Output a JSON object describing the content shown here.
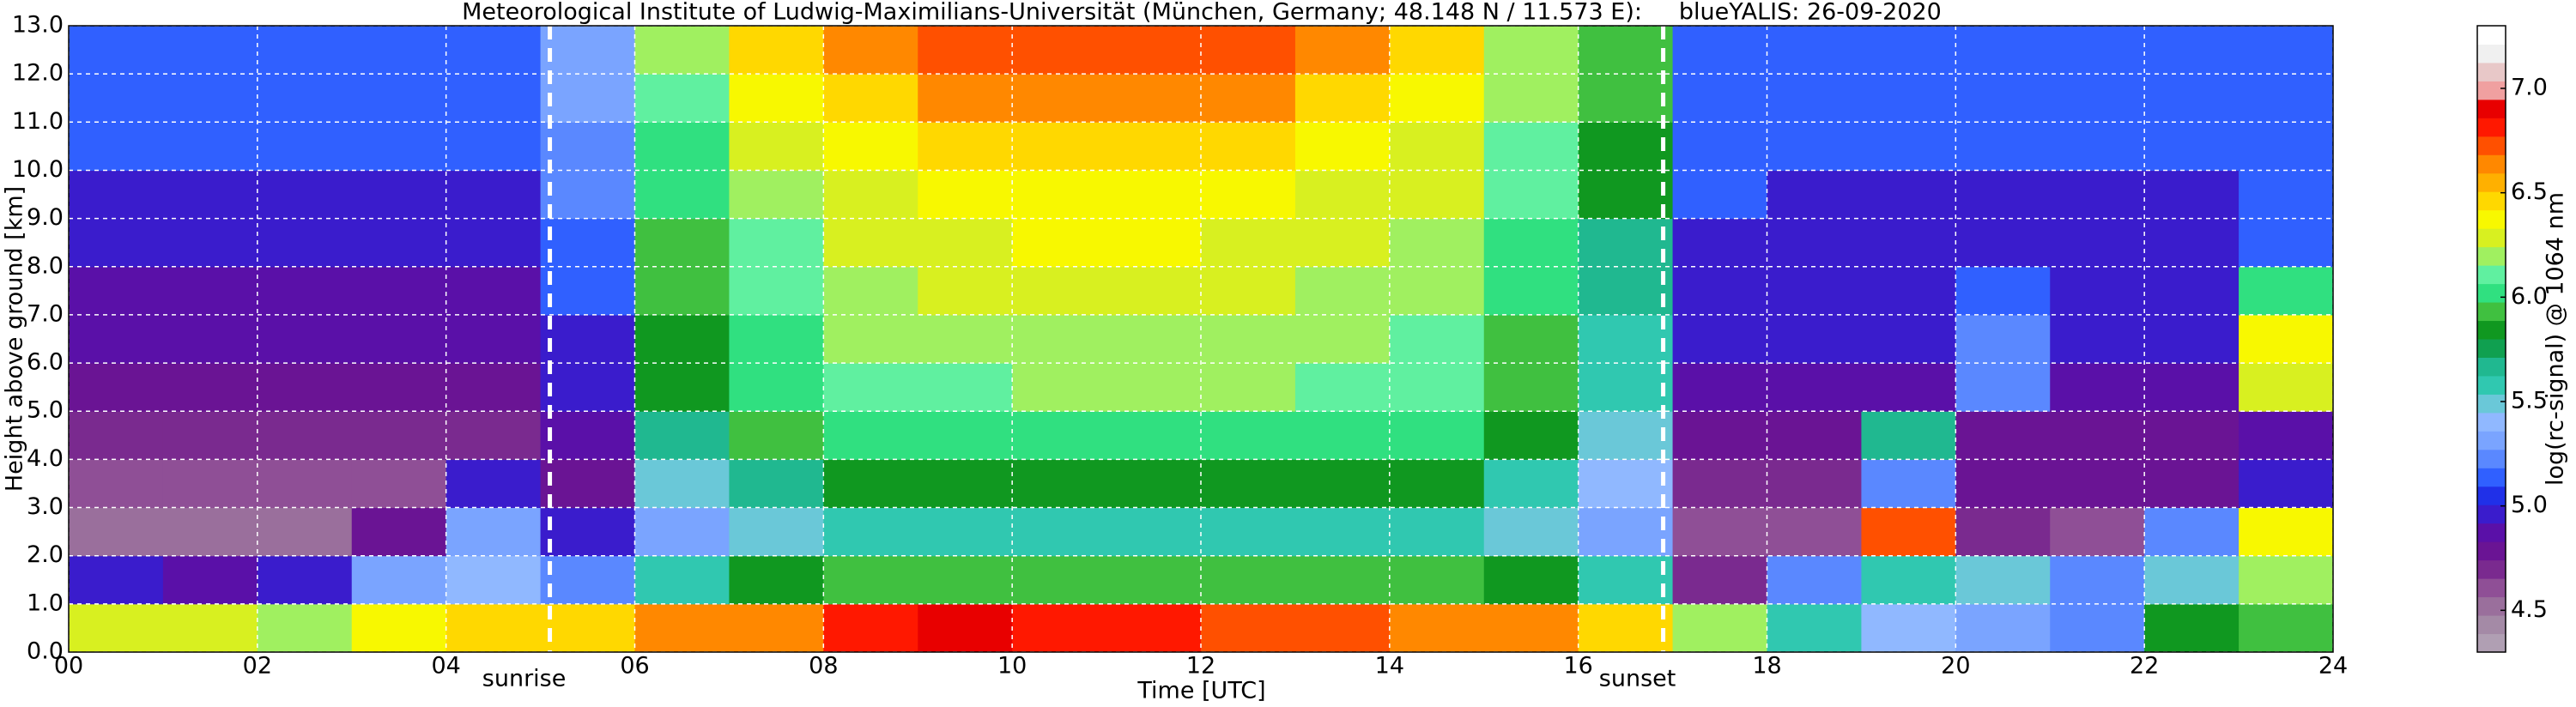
{
  "chart_data": {
    "type": "heatmap",
    "title": "Meteorological Institute of Ludwig-Maximilians-Universität (München, Germany; 48.148 N / 11.573 E):     blueYALIS: 26-09-2020",
    "xlabel": "Time [UTC]",
    "ylabel": "Height above ground [km]",
    "colorbar_label": "log(rc-signal) @ 1064 nm",
    "x": [
      0.5,
      1.5,
      2.5,
      3.5,
      4.5,
      5.5,
      6.5,
      7.5,
      8.5,
      9.5,
      10.5,
      11.5,
      12.5,
      13.5,
      14.5,
      15.5,
      16.5,
      17.5,
      18.5,
      19.5,
      20.5,
      21.5,
      22.5,
      23.5
    ],
    "y": [
      0.5,
      1.5,
      2.5,
      3.5,
      4.5,
      5.5,
      6.5,
      7.5,
      8.5,
      9.5,
      10.5,
      11.5,
      12.5
    ],
    "z": [
      [
        6.3,
        6.3,
        6.2,
        6.4,
        6.5,
        6.5,
        6.6,
        6.6,
        6.8,
        6.9,
        6.8,
        6.8,
        6.7,
        6.7,
        6.6,
        6.6,
        6.5,
        6.2,
        5.6,
        5.4,
        5.3,
        5.2,
        5.8,
        5.9
      ],
      [
        5.0,
        4.9,
        5.0,
        5.3,
        5.4,
        5.2,
        5.6,
        5.8,
        5.9,
        5.9,
        5.9,
        5.9,
        5.9,
        5.9,
        5.9,
        5.8,
        5.6,
        4.7,
        5.2,
        5.6,
        5.5,
        5.2,
        5.5,
        6.2
      ],
      [
        4.5,
        4.5,
        4.5,
        4.8,
        5.3,
        5.0,
        5.3,
        5.5,
        5.6,
        5.6,
        5.6,
        5.6,
        5.6,
        5.6,
        5.6,
        5.5,
        5.3,
        4.6,
        4.6,
        6.7,
        4.7,
        4.6,
        5.2,
        6.4
      ],
      [
        4.6,
        4.6,
        4.6,
        4.6,
        5.0,
        4.8,
        5.5,
        5.7,
        5.8,
        5.8,
        5.8,
        5.8,
        5.8,
        5.8,
        5.8,
        5.6,
        5.4,
        4.7,
        4.7,
        5.2,
        4.8,
        4.8,
        4.8,
        5.0
      ],
      [
        4.7,
        4.7,
        4.7,
        4.7,
        4.7,
        4.9,
        5.7,
        5.9,
        6.0,
        6.0,
        6.0,
        6.0,
        6.0,
        6.0,
        6.0,
        5.8,
        5.5,
        4.8,
        4.8,
        5.7,
        4.8,
        4.8,
        4.8,
        4.9
      ],
      [
        4.8,
        4.8,
        4.8,
        4.8,
        4.8,
        5.0,
        5.8,
        6.0,
        6.1,
        6.1,
        6.2,
        6.2,
        6.2,
        6.1,
        6.1,
        5.9,
        5.6,
        4.9,
        4.9,
        4.9,
        5.2,
        4.9,
        4.9,
        6.3
      ],
      [
        4.9,
        4.9,
        4.9,
        4.9,
        4.9,
        5.0,
        5.8,
        6.0,
        6.2,
        6.2,
        6.2,
        6.2,
        6.2,
        6.2,
        6.1,
        5.9,
        5.6,
        5.0,
        5.0,
        5.0,
        5.2,
        5.0,
        5.0,
        6.4
      ],
      [
        4.9,
        4.9,
        4.9,
        4.9,
        4.9,
        5.1,
        5.9,
        6.1,
        6.2,
        6.3,
        6.3,
        6.3,
        6.3,
        6.2,
        6.2,
        6.0,
        5.7,
        5.0,
        5.0,
        5.0,
        5.1,
        5.0,
        5.0,
        6.0
      ],
      [
        5.0,
        5.0,
        5.0,
        5.0,
        5.0,
        5.1,
        5.9,
        6.1,
        6.3,
        6.3,
        6.4,
        6.4,
        6.3,
        6.3,
        6.2,
        6.0,
        5.7,
        5.0,
        5.0,
        5.0,
        5.0,
        5.0,
        5.0,
        5.1
      ],
      [
        5.0,
        5.0,
        5.0,
        5.0,
        5.0,
        5.2,
        6.0,
        6.2,
        6.3,
        6.4,
        6.4,
        6.4,
        6.4,
        6.3,
        6.3,
        6.1,
        5.8,
        5.1,
        5.0,
        5.0,
        5.0,
        5.0,
        5.0,
        5.1
      ],
      [
        5.1,
        5.1,
        5.1,
        5.1,
        5.1,
        5.2,
        6.0,
        6.3,
        6.4,
        6.5,
        6.5,
        6.5,
        6.5,
        6.4,
        6.3,
        6.1,
        5.8,
        5.1,
        5.1,
        5.1,
        5.1,
        5.1,
        5.1,
        5.1
      ],
      [
        5.1,
        5.1,
        5.1,
        5.1,
        5.1,
        5.3,
        6.1,
        6.4,
        6.5,
        6.6,
        6.6,
        6.6,
        6.6,
        6.5,
        6.4,
        6.2,
        5.9,
        5.1,
        5.1,
        5.1,
        5.1,
        5.1,
        5.1,
        5.1
      ],
      [
        5.1,
        5.1,
        5.1,
        5.1,
        5.1,
        5.3,
        6.2,
        6.5,
        6.6,
        6.7,
        6.7,
        6.7,
        6.7,
        6.6,
        6.5,
        6.2,
        5.9,
        5.1,
        5.1,
        5.1,
        5.1,
        5.1,
        5.1,
        5.1
      ]
    ],
    "xlim": [
      0,
      24
    ],
    "ylim": [
      0,
      13
    ],
    "clim": [
      4.3,
      7.3
    ],
    "xticks": [
      {
        "value": 0,
        "label": "00"
      },
      {
        "value": 2,
        "label": "02"
      },
      {
        "value": 4,
        "label": "04"
      },
      {
        "value": 6,
        "label": "06"
      },
      {
        "value": 8,
        "label": "08"
      },
      10,
      12,
      14,
      16,
      18,
      20,
      22,
      24
    ],
    "yticks": [
      {
        "value": 0,
        "label": "0.0"
      },
      {
        "value": 1,
        "label": "1.0"
      },
      {
        "value": 2,
        "label": "2.0"
      },
      {
        "value": 3,
        "label": "3.0"
      },
      {
        "value": 4,
        "label": "4.0"
      },
      {
        "value": 5,
        "label": "5.0"
      },
      {
        "value": 6,
        "label": "6.0"
      },
      {
        "value": 7,
        "label": "7.0"
      },
      {
        "value": 8,
        "label": "8.0"
      },
      {
        "value": 9,
        "label": "9.0"
      },
      {
        "value": 10,
        "label": "10.0"
      },
      {
        "value": 11,
        "label": "11.0"
      },
      {
        "value": 12,
        "label": "12.0"
      },
      {
        "value": 13,
        "label": "13.0"
      }
    ],
    "cticks": [
      4.5,
      {
        "value": 5,
        "label": "5.0"
      },
      5.5,
      {
        "value": 6,
        "label": "6.0"
      },
      6.5,
      {
        "value": 7,
        "label": "7.0"
      }
    ],
    "colormap": [
      "#b09fb3",
      "#a48aa6",
      "#9a6f9c",
      "#8f4f96",
      "#7a2a8f",
      "#6a1494",
      "#5a10a8",
      "#3a1ccc",
      "#2030e8",
      "#3060ff",
      "#5a88ff",
      "#7aa4ff",
      "#90b8ff",
      "#6ac8d8",
      "#30c8b0",
      "#20b890",
      "#10a050",
      "#109820",
      "#40c040",
      "#30e080",
      "#60f0a0",
      "#a0f060",
      "#d8f020",
      "#f8f800",
      "#ffd800",
      "#ffb000",
      "#ff8800",
      "#ff5000",
      "#ff1800",
      "#e80000",
      "#f0a0a0",
      "#e8c8c8",
      "#f0f0f0",
      "#ffffff"
    ],
    "grid": true,
    "annotations": [
      {
        "text": "sunrise",
        "x": 5.1
      },
      {
        "text": "sunset",
        "x": 16.9
      }
    ]
  }
}
